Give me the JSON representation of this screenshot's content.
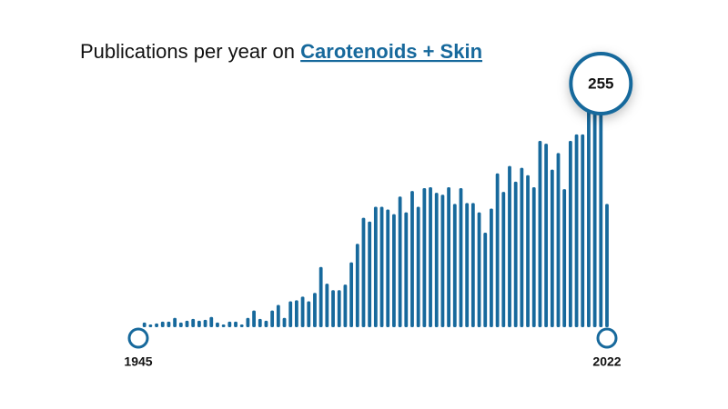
{
  "chart_data": {
    "type": "bar",
    "title": "Publications per year on ",
    "title_link": "Carotenoids + Skin",
    "color": "#17699c",
    "xlim": [
      1945,
      2022
    ],
    "xticks": [
      1945,
      2022
    ],
    "values": [
      0,
      5,
      3,
      4,
      6,
      6,
      10,
      5,
      7,
      9,
      7,
      8,
      11,
      5,
      3,
      6,
      6,
      3,
      10,
      18,
      9,
      7,
      18,
      24,
      10,
      28,
      29,
      33,
      28,
      37,
      65,
      47,
      40,
      40,
      46,
      70,
      90,
      118,
      114,
      130,
      130,
      127,
      122,
      141,
      124,
      147,
      130,
      150,
      151,
      145,
      143,
      151,
      133,
      150,
      134,
      134,
      124,
      102,
      128,
      166,
      146,
      174,
      157,
      172,
      164,
      151,
      201,
      198,
      170,
      188,
      149,
      201,
      208,
      208,
      235,
      240,
      255,
      133
    ]
  }
}
